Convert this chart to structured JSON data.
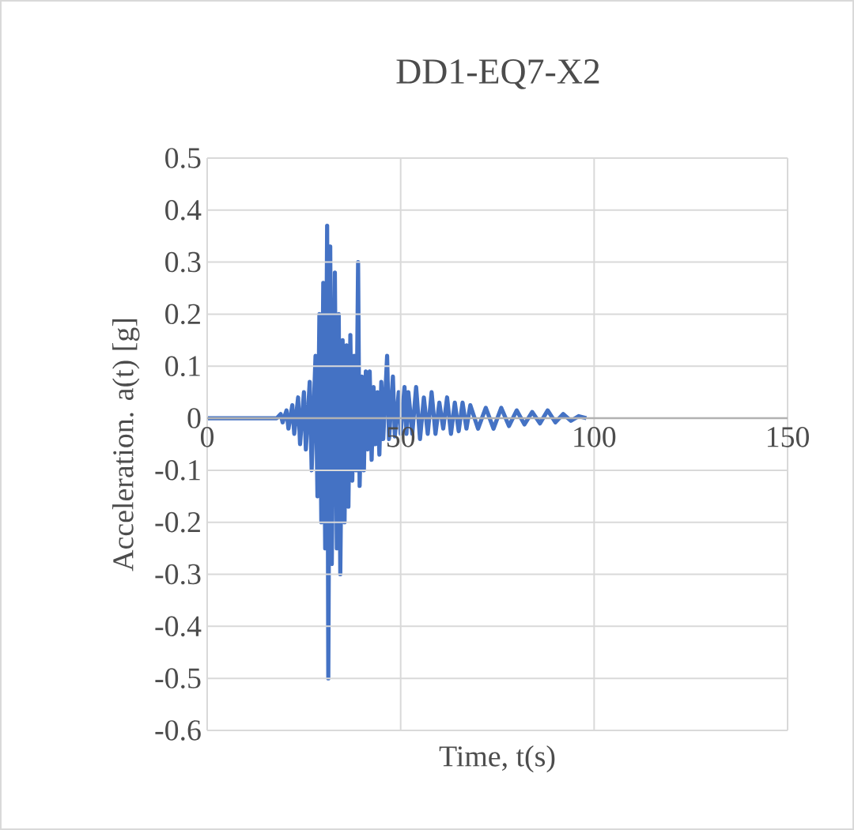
{
  "chart_data": {
    "type": "line",
    "title": "DD1-EQ7-X2",
    "xlabel": "Time, t(s)",
    "ylabel": "Acceleration. a(t) [g]",
    "x": [
      0,
      18,
      19,
      19.5,
      20.5,
      21,
      22,
      22.5,
      23.5,
      24,
      25,
      25.5,
      26.5,
      27,
      28,
      28.5,
      29,
      29.5,
      30,
      30.5,
      31,
      31.3,
      31.8,
      32.2,
      33,
      33.5,
      34,
      34.4,
      35,
      35.5,
      36,
      36.5,
      37,
      37.5,
      38,
      38.5,
      39,
      39.4,
      40,
      40.5,
      41,
      41.5,
      42,
      42.5,
      43,
      43.5,
      44,
      44.5,
      45,
      45.5,
      46.5,
      47,
      48,
      48.5,
      49.5,
      50,
      51,
      51.5,
      52,
      53,
      54,
      55,
      56,
      57,
      58,
      59,
      60,
      61,
      62,
      63,
      64,
      65,
      66,
      67,
      68,
      70,
      72,
      74,
      76,
      78,
      80,
      82,
      84,
      86,
      88,
      90,
      92,
      94,
      96,
      98
    ],
    "values": [
      0,
      0,
      0.008,
      -0.008,
      0.015,
      -0.02,
      0.025,
      -0.03,
      0.04,
      -0.05,
      0.05,
      -0.06,
      0.07,
      -0.1,
      0.12,
      -0.15,
      0.2,
      -0.2,
      0.26,
      -0.25,
      0.37,
      -0.5,
      0.33,
      -0.28,
      0.28,
      -0.25,
      0.2,
      -0.3,
      0.15,
      -0.2,
      0.14,
      -0.17,
      0.16,
      -0.12,
      0.12,
      -0.1,
      0.3,
      -0.13,
      0.08,
      -0.1,
      0.09,
      -0.06,
      0.09,
      -0.08,
      0.06,
      -0.05,
      0.05,
      -0.07,
      0.07,
      -0.04,
      0.12,
      -0.04,
      0.08,
      -0.035,
      0.05,
      -0.03,
      0.06,
      -0.03,
      0.05,
      -0.03,
      0.06,
      -0.04,
      0.04,
      -0.03,
      0.05,
      -0.03,
      0.03,
      -0.02,
      0.04,
      -0.03,
      0.03,
      -0.025,
      0.03,
      -0.02,
      0.025,
      -0.02,
      0.02,
      -0.02,
      0.02,
      -0.015,
      0.015,
      -0.012,
      0.012,
      -0.01,
      0.015,
      -0.008,
      0.008,
      -0.005,
      0.004,
      0
    ],
    "color": "#4472c4",
    "xlim": [
      0,
      150
    ],
    "ylim": [
      -0.6,
      0.5
    ],
    "xticks": [
      0,
      50,
      100,
      150
    ],
    "yticks": [
      -0.6,
      -0.5,
      -0.4,
      -0.3,
      -0.2,
      -0.1,
      0,
      0.1,
      0.2,
      0.3,
      0.4,
      0.5
    ],
    "grid": true
  }
}
